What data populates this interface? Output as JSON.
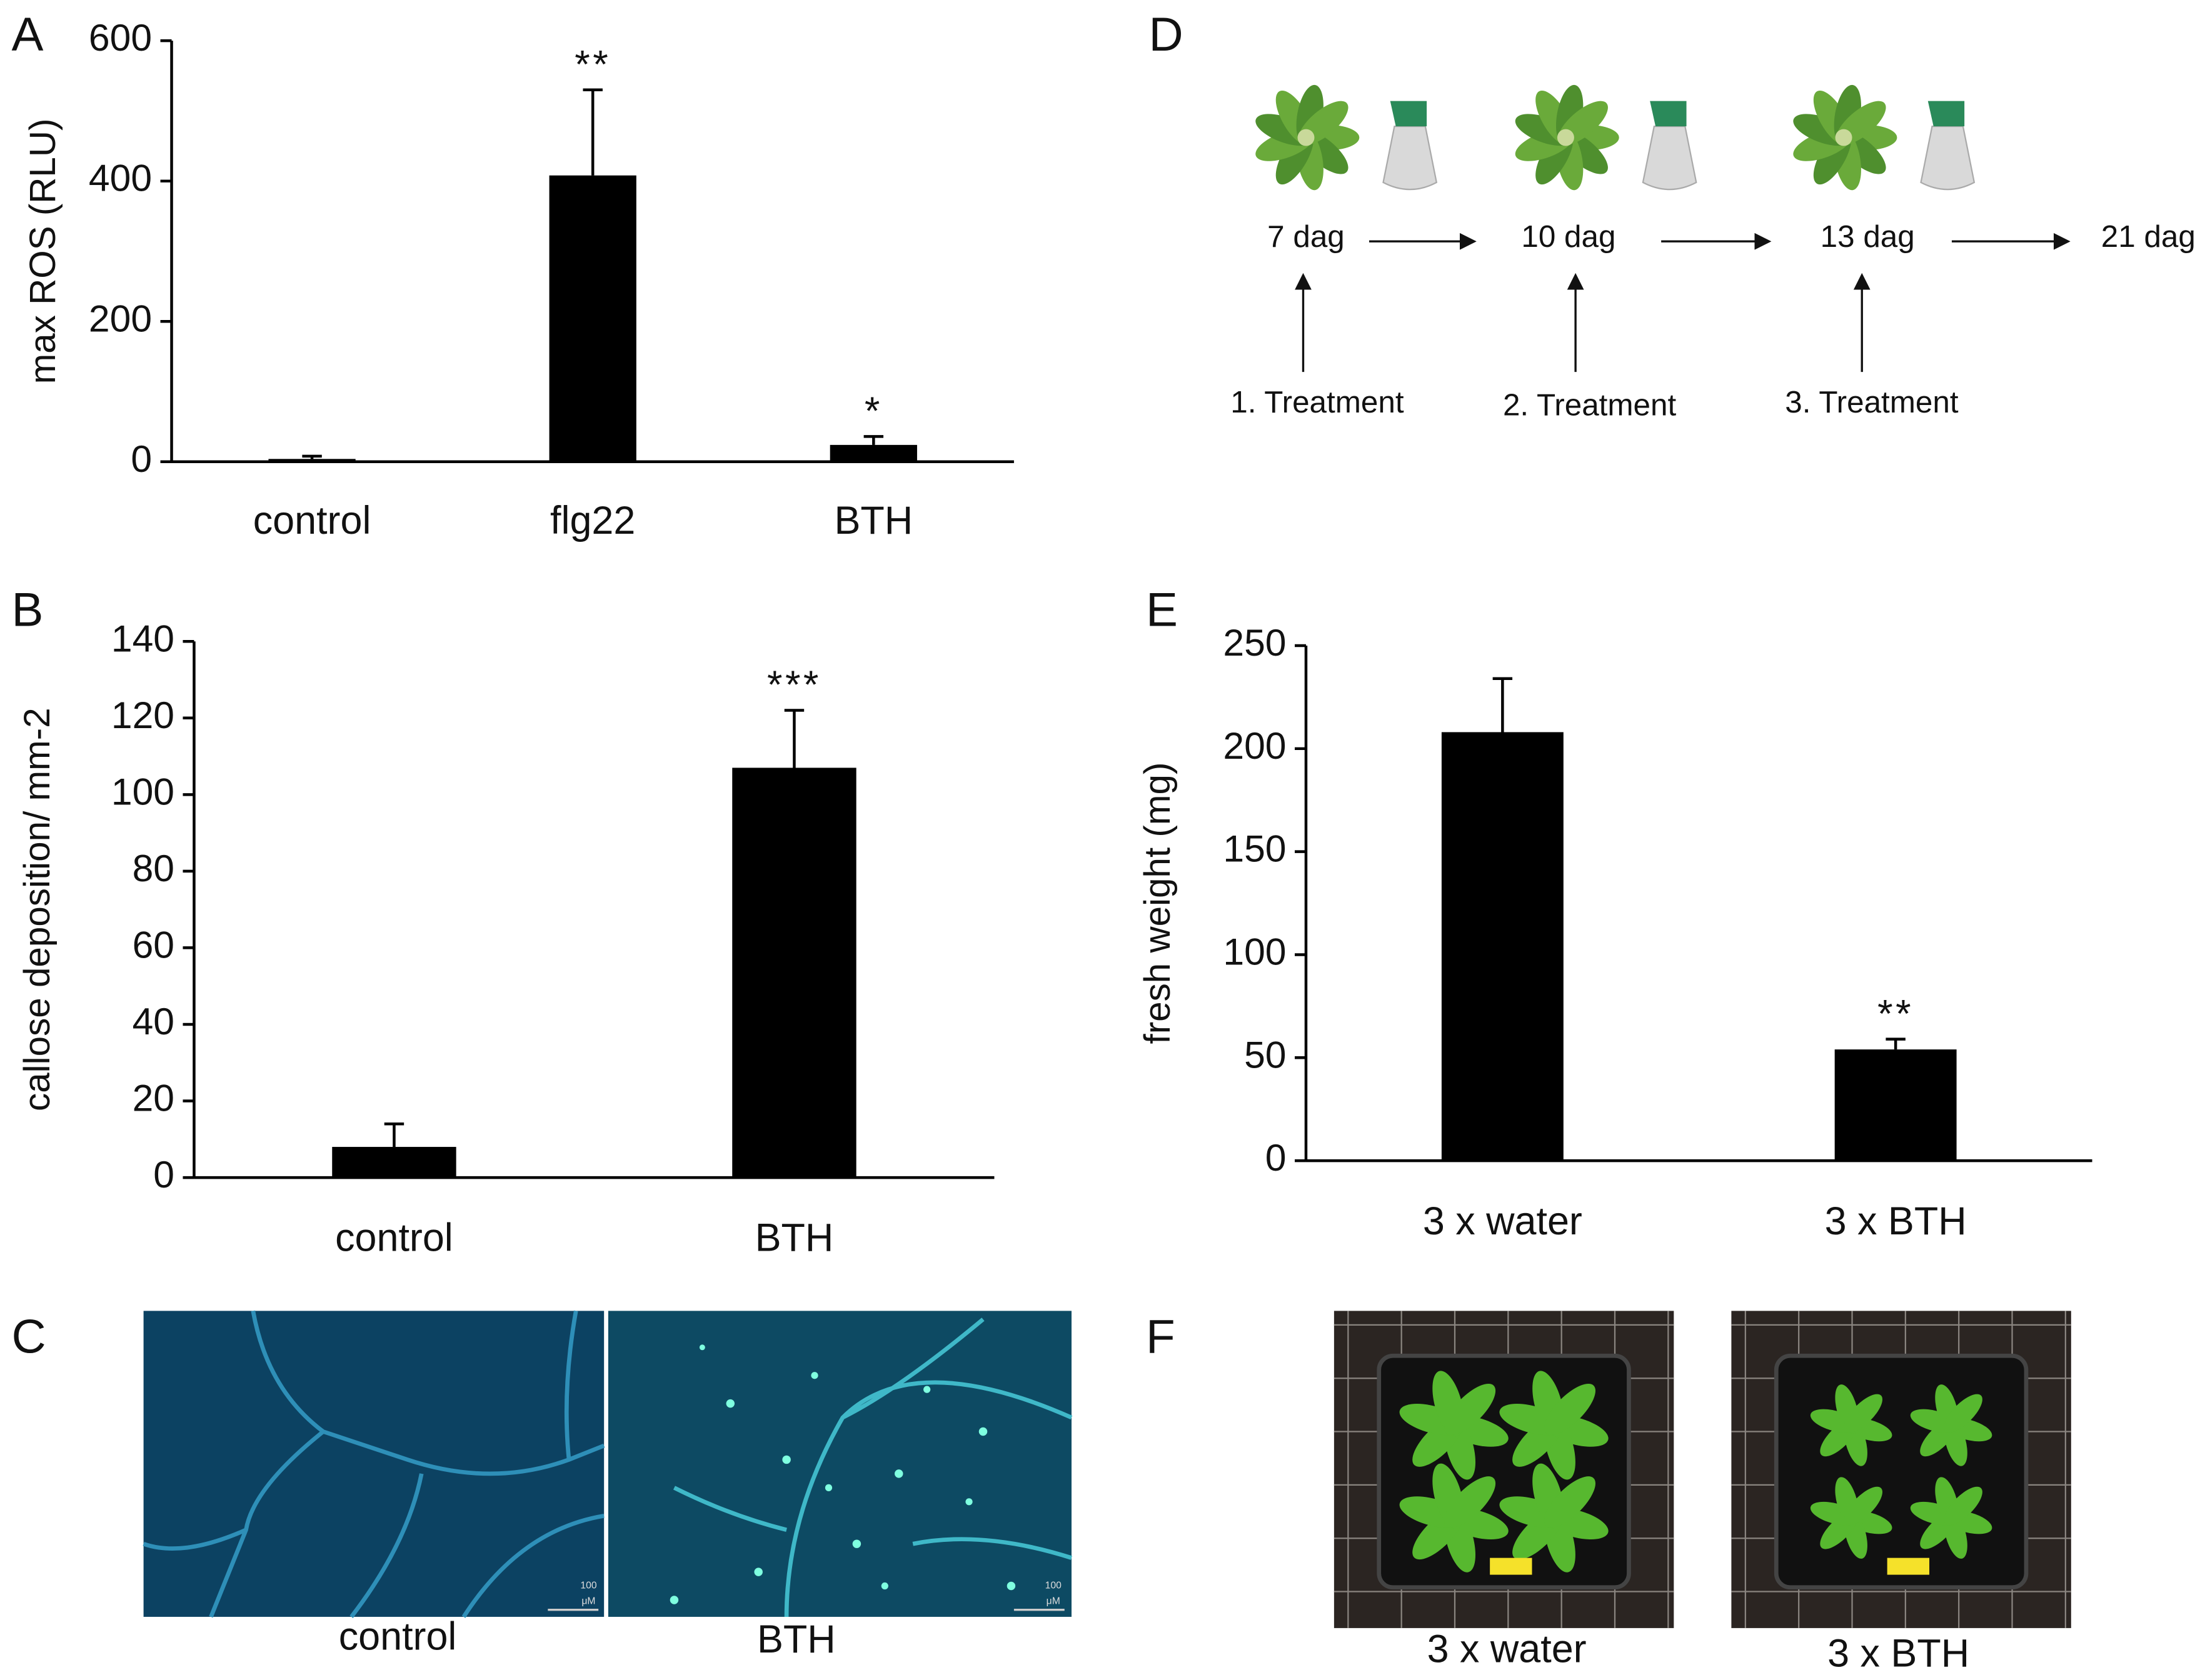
{
  "chart_data": [
    {
      "type": "bar",
      "panel": "A",
      "y_label": "max ROS (RLU)",
      "categories": [
        "control",
        "flg22",
        "BTH"
      ],
      "values": [
        4,
        408,
        24
      ],
      "errors": [
        4,
        122,
        12
      ],
      "annotations": [
        null,
        "**",
        "*"
      ],
      "color": "#000000",
      "ylim": [
        0,
        600
      ],
      "yticks": [
        0,
        200,
        400,
        600
      ]
    },
    {
      "type": "bar",
      "panel": "B",
      "y_label": "callose deposition/ mm-2",
      "categories": [
        "control",
        "BTH"
      ],
      "values": [
        8,
        107
      ],
      "errors": [
        6,
        15
      ],
      "annotations": [
        null,
        "***"
      ],
      "color": "#000000",
      "ylim": [
        0,
        140
      ],
      "yticks": [
        0,
        20,
        40,
        60,
        80,
        100,
        120,
        140
      ]
    },
    {
      "type": "bar",
      "panel": "E",
      "y_label": "fresh weight (mg)",
      "categories": [
        "3 x water",
        "3 x BTH"
      ],
      "values": [
        208,
        54
      ],
      "errors": [
        26,
        5
      ],
      "annotations": [
        null,
        "**"
      ],
      "color": "#000000",
      "ylim": [
        0,
        250
      ],
      "yticks": [
        0,
        50,
        100,
        150,
        200,
        250
      ]
    }
  ],
  "panel_c": {
    "label": "C",
    "images": [
      "control",
      "BTH"
    ],
    "scale_bar": [
      "100",
      "μM"
    ]
  },
  "panel_d": {
    "label": "D",
    "timeline": [
      "7 dag",
      "10 dag",
      "13 dag",
      "21 dag"
    ],
    "treatments": [
      "1. Treatment",
      "2. Treatment",
      "3. Treatment"
    ]
  },
  "panel_f": {
    "label": "F",
    "images": [
      "3 x water",
      "3 x BTH"
    ]
  }
}
